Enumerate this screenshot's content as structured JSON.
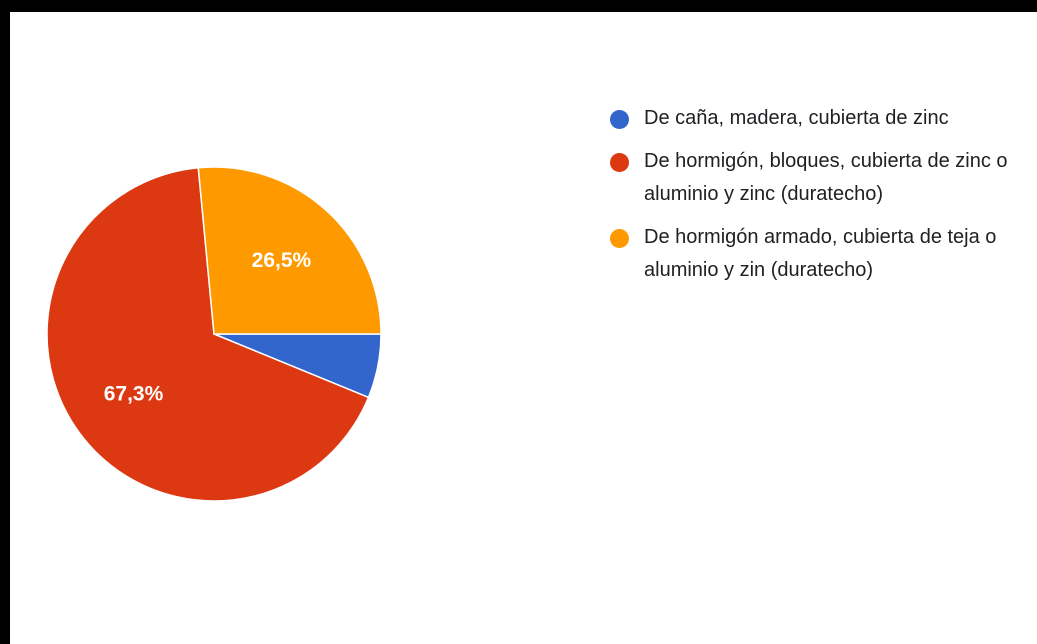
{
  "chart_data": {
    "type": "pie",
    "slices": [
      {
        "label": "De caña, madera, cubierta de zinc",
        "value": 6.2,
        "display": "",
        "color": "#3366cc"
      },
      {
        "label": "De hormigón, bloques, cubierta de zinc o aluminio y zinc (duratecho)",
        "value": 67.3,
        "display": "67,3%",
        "color": "#dc3912"
      },
      {
        "label": "De hormigón armado, cubierta de teja o aluminio y zin (duratecho)",
        "value": 26.5,
        "display": "26,5%",
        "color": "#ff9900"
      }
    ],
    "legend_position": "right"
  }
}
